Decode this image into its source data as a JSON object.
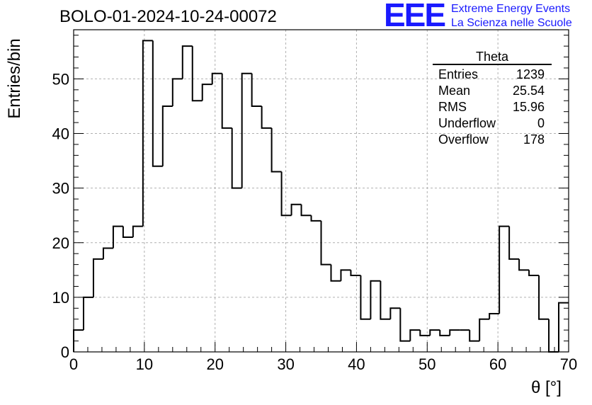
{
  "header": {
    "run_title": "BOLO-01-2024-10-24-00072",
    "logo_text": "EEE",
    "logo_line1": "Extreme Energy Events",
    "logo_line2": "La Scienza nelle Scuole"
  },
  "stats": {
    "title": "Theta",
    "rows": [
      {
        "key": "Entries",
        "value": "1239"
      },
      {
        "key": "Mean",
        "value": "25.54"
      },
      {
        "key": "RMS",
        "value": "15.96"
      },
      {
        "key": "Underflow",
        "value": "0"
      },
      {
        "key": "Overflow",
        "value": "178"
      }
    ]
  },
  "chart_data": {
    "type": "bar",
    "title": "BOLO-01-2024-10-24-00072",
    "xlabel": "θ [°]",
    "ylabel": "Entries/bin",
    "xlim": [
      0,
      70
    ],
    "ylim": [
      0,
      59
    ],
    "grid": true,
    "bin_width": 1.4,
    "x_ticks": [
      0,
      10,
      20,
      30,
      40,
      50,
      60,
      70
    ],
    "y_ticks": [
      0,
      10,
      20,
      30,
      40,
      50
    ],
    "values": [
      4,
      10,
      17,
      19,
      23,
      21,
      23,
      57,
      34,
      45,
      50,
      56,
      46,
      49,
      51,
      41,
      30,
      51,
      45,
      41,
      33,
      25,
      27,
      25,
      24,
      16,
      13,
      15,
      14,
      6,
      13,
      6,
      8,
      2,
      4,
      3,
      4,
      3,
      4,
      4,
      2,
      6,
      7,
      23,
      17,
      15,
      14,
      6,
      0,
      9
    ]
  }
}
